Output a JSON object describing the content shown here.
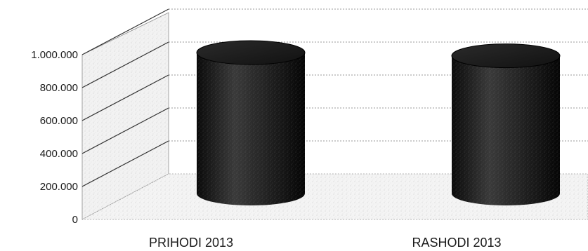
{
  "chart_data": {
    "type": "bar",
    "style": "3d-cylinder",
    "categories": [
      "PRIHODI 2013",
      "RASHODI 2013"
    ],
    "values": [
      870000,
      850000
    ],
    "yticks": [
      "0",
      "200.000",
      "400.000",
      "600.000",
      "800.000",
      "1.000.000"
    ],
    "ylim": [
      0,
      1000000
    ],
    "grid": true,
    "legend": "none",
    "colors": {
      "bar": "#1a1a1a",
      "wall": "#f2f2f2",
      "grid": "#9a9a9a"
    }
  }
}
